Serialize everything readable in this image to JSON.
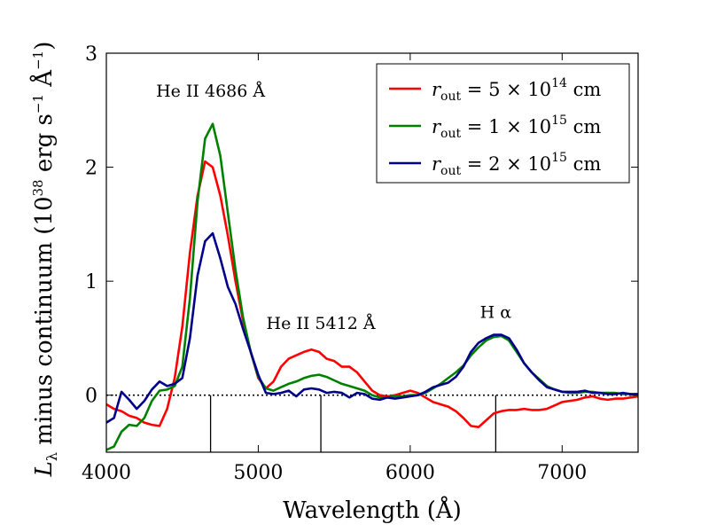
{
  "chart_data": {
    "type": "line",
    "xlabel": "Wavelength (Å)",
    "ylabel": "L_λ minus continuum (10^38 erg s^-1 Å^-1)",
    "ylabel_parts": {
      "main": "L",
      "sub": "λ",
      "mid": " minus continuum (10",
      "exp1": "38",
      "unit": " erg s",
      "exp2": "−1",
      "unit2": " Å",
      "exp3": "−1",
      "end": ")"
    },
    "xlim": [
      4000,
      7500
    ],
    "ylim": [
      -0.5,
      3.0
    ],
    "xticks": [
      4000,
      5000,
      6000,
      7000
    ],
    "yticks": [
      0,
      1,
      2,
      3
    ],
    "zero_line": "dotted",
    "line_markers": [
      {
        "x": 4686,
        "y_top": 0.0,
        "y_bottom": -0.5
      },
      {
        "x": 5412,
        "y_top": 0.0,
        "y_bottom": -0.5
      },
      {
        "x": 6563,
        "y_top": 0.0,
        "y_bottom": -0.5
      }
    ],
    "annotations": [
      {
        "text": "He II 4686 Å",
        "x": 4686,
        "y": 2.62
      },
      {
        "text": "He II 5412 Å",
        "x": 5412,
        "y": 0.58
      },
      {
        "text": "H α",
        "x": 6563,
        "y": 0.68
      }
    ],
    "legend": {
      "position": "top-right"
    },
    "series": [
      {
        "name": "r_out = 5 × 10^14 cm",
        "label_parts": {
          "coef": "5",
          "exp": "14"
        },
        "color": "#ff0000",
        "x": [
          4000,
          4050,
          4100,
          4150,
          4200,
          4250,
          4300,
          4350,
          4400,
          4450,
          4500,
          4550,
          4600,
          4650,
          4700,
          4750,
          4800,
          4850,
          4900,
          4950,
          5000,
          5050,
          5100,
          5150,
          5200,
          5250,
          5300,
          5350,
          5400,
          5450,
          5500,
          5550,
          5600,
          5650,
          5700,
          5750,
          5800,
          5850,
          5900,
          5950,
          6000,
          6050,
          6100,
          6150,
          6200,
          6250,
          6300,
          6350,
          6400,
          6450,
          6500,
          6550,
          6600,
          6650,
          6700,
          6750,
          6800,
          6850,
          6900,
          6950,
          7000,
          7050,
          7100,
          7150,
          7200,
          7250,
          7300,
          7350,
          7400,
          7450,
          7500
        ],
        "y": [
          -0.08,
          -0.12,
          -0.14,
          -0.18,
          -0.2,
          -0.24,
          -0.26,
          -0.27,
          -0.12,
          0.15,
          0.6,
          1.25,
          1.75,
          2.05,
          2.0,
          1.75,
          1.4,
          1.0,
          0.65,
          0.38,
          0.15,
          0.06,
          0.12,
          0.25,
          0.32,
          0.35,
          0.38,
          0.4,
          0.38,
          0.32,
          0.3,
          0.25,
          0.25,
          0.2,
          0.12,
          0.04,
          0.0,
          -0.01,
          0.0,
          0.02,
          0.04,
          0.02,
          -0.02,
          -0.06,
          -0.08,
          -0.1,
          -0.14,
          -0.2,
          -0.27,
          -0.28,
          -0.22,
          -0.16,
          -0.14,
          -0.13,
          -0.13,
          -0.12,
          -0.13,
          -0.13,
          -0.12,
          -0.09,
          -0.06,
          -0.05,
          -0.04,
          -0.02,
          -0.01,
          -0.03,
          -0.04,
          -0.03,
          -0.03,
          -0.02,
          -0.01
        ]
      },
      {
        "name": "r_out = 1 × 10^15 cm",
        "label_parts": {
          "coef": "1",
          "exp": "15"
        },
        "color": "#008000",
        "x": [
          4000,
          4050,
          4100,
          4150,
          4200,
          4250,
          4300,
          4350,
          4400,
          4450,
          4500,
          4550,
          4600,
          4650,
          4700,
          4750,
          4800,
          4850,
          4900,
          4950,
          5000,
          5050,
          5100,
          5150,
          5200,
          5250,
          5300,
          5350,
          5400,
          5450,
          5500,
          5550,
          5600,
          5650,
          5700,
          5750,
          5800,
          5850,
          5900,
          5950,
          6000,
          6050,
          6100,
          6150,
          6200,
          6250,
          6300,
          6350,
          6400,
          6450,
          6500,
          6550,
          6600,
          6650,
          6700,
          6750,
          6800,
          6850,
          6900,
          6950,
          7000,
          7050,
          7100,
          7150,
          7200,
          7250,
          7300,
          7350,
          7400,
          7450,
          7500
        ],
        "y": [
          -0.48,
          -0.45,
          -0.32,
          -0.26,
          -0.27,
          -0.2,
          -0.05,
          0.04,
          0.05,
          0.08,
          0.25,
          0.85,
          1.7,
          2.25,
          2.38,
          2.1,
          1.6,
          1.1,
          0.68,
          0.38,
          0.16,
          0.06,
          0.04,
          0.07,
          0.1,
          0.12,
          0.15,
          0.17,
          0.18,
          0.16,
          0.13,
          0.1,
          0.08,
          0.06,
          0.04,
          0.0,
          -0.02,
          -0.02,
          -0.01,
          -0.01,
          0.0,
          0.0,
          0.02,
          0.06,
          0.1,
          0.15,
          0.2,
          0.26,
          0.35,
          0.42,
          0.48,
          0.51,
          0.52,
          0.48,
          0.38,
          0.28,
          0.2,
          0.14,
          0.08,
          0.05,
          0.03,
          0.02,
          0.02,
          0.03,
          0.03,
          0.02,
          0.02,
          0.02,
          0.01,
          0.01,
          0.0
        ]
      },
      {
        "name": "r_out = 2 × 10^15 cm",
        "label_parts": {
          "coef": "2",
          "exp": "15"
        },
        "color": "#00008b",
        "x": [
          4000,
          4050,
          4100,
          4150,
          4200,
          4250,
          4300,
          4350,
          4400,
          4450,
          4500,
          4550,
          4600,
          4650,
          4700,
          4750,
          4800,
          4850,
          4900,
          4950,
          5000,
          5050,
          5100,
          5150,
          5200,
          5250,
          5300,
          5350,
          5400,
          5450,
          5500,
          5550,
          5600,
          5650,
          5700,
          5750,
          5800,
          5850,
          5900,
          5950,
          6000,
          6050,
          6100,
          6150,
          6200,
          6250,
          6300,
          6350,
          6400,
          6450,
          6500,
          6550,
          6600,
          6650,
          6700,
          6750,
          6800,
          6850,
          6900,
          6950,
          7000,
          7050,
          7100,
          7150,
          7200,
          7250,
          7300,
          7350,
          7400,
          7450,
          7500
        ],
        "y": [
          -0.24,
          -0.2,
          0.03,
          -0.04,
          -0.12,
          -0.05,
          0.05,
          0.12,
          0.08,
          0.1,
          0.15,
          0.5,
          1.05,
          1.35,
          1.42,
          1.2,
          0.95,
          0.8,
          0.58,
          0.38,
          0.18,
          0.02,
          0.01,
          0.02,
          0.04,
          -0.01,
          0.05,
          0.06,
          0.05,
          0.02,
          0.03,
          0.02,
          -0.02,
          0.02,
          0.01,
          -0.03,
          -0.04,
          -0.02,
          -0.03,
          -0.02,
          -0.01,
          0.0,
          0.03,
          0.07,
          0.09,
          0.11,
          0.16,
          0.25,
          0.38,
          0.46,
          0.5,
          0.53,
          0.53,
          0.5,
          0.4,
          0.28,
          0.2,
          0.13,
          0.07,
          0.05,
          0.03,
          0.03,
          0.03,
          0.04,
          0.02,
          0.02,
          0.01,
          0.01,
          0.02,
          0.01,
          0.01
        ]
      }
    ]
  }
}
